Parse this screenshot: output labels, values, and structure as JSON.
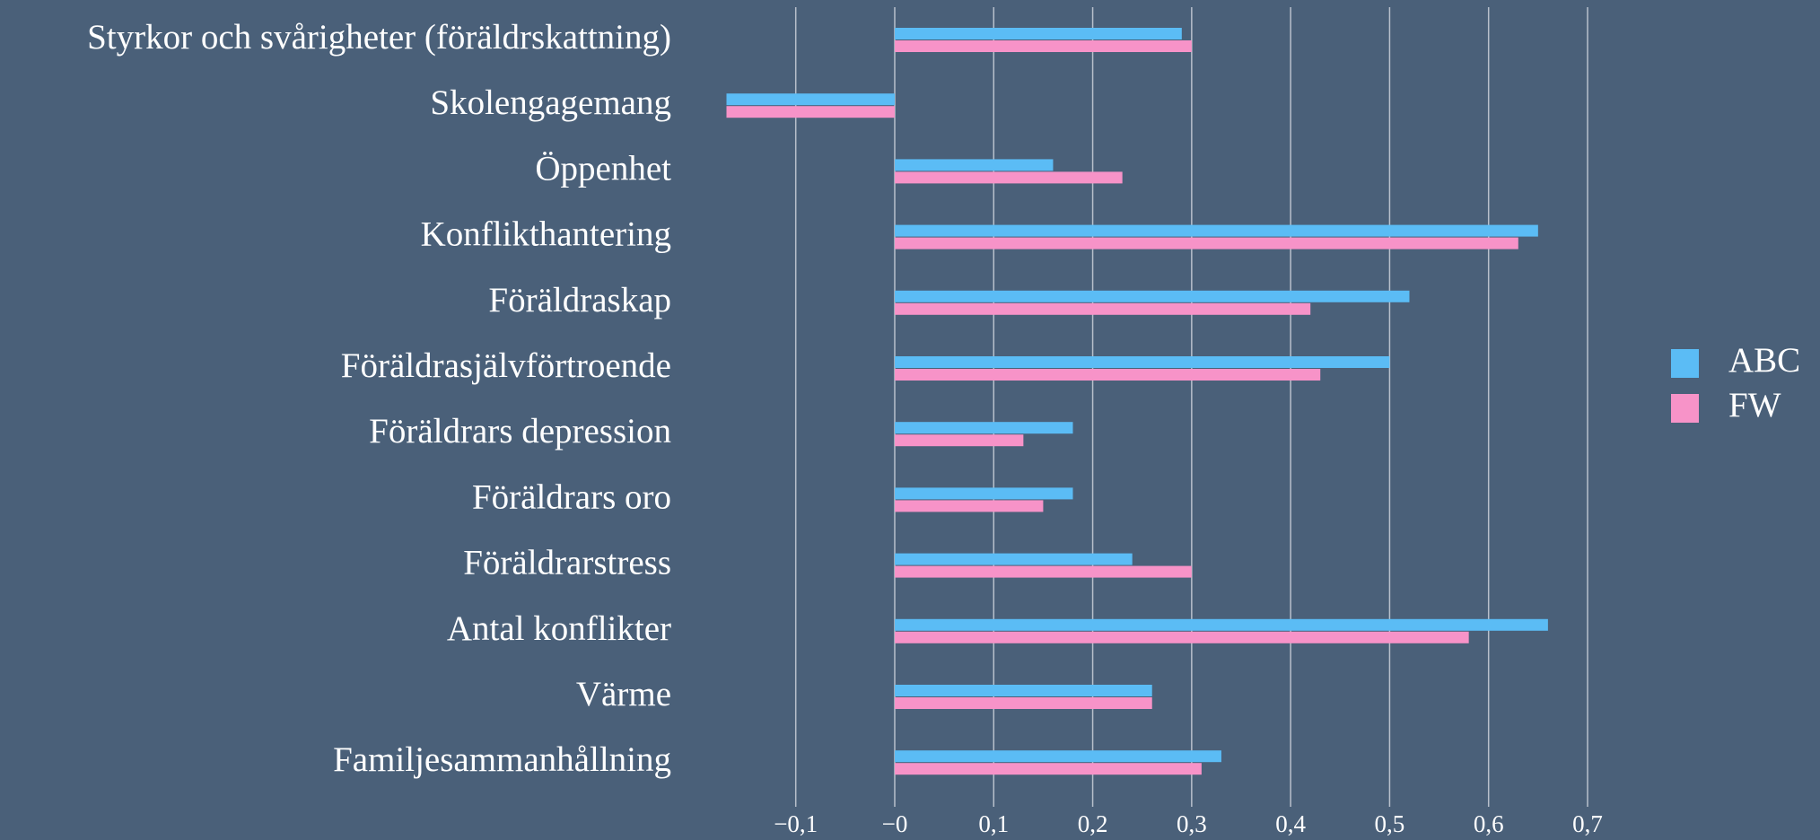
{
  "chart_data": {
    "type": "barh",
    "categories": [
      "Styrkor och svårigheter (föräldrskattning)",
      "Skolengagemang",
      "Öppenhet",
      "Konflikthantering",
      "Föräldraskap",
      "Föräldrasjälvförtroende",
      "Föräldrars depression",
      "Föräldrars oro",
      "Föräldrarstress",
      "Antal konflikter",
      "Värme",
      "Familjesammanhållning"
    ],
    "series": [
      {
        "name": "ABC",
        "color": "#5bbcf5",
        "values": [
          0.29,
          -0.17,
          0.16,
          0.65,
          0.52,
          0.5,
          0.18,
          0.18,
          0.24,
          0.66,
          0.26,
          0.33
        ]
      },
      {
        "name": "FW",
        "color": "#f793c8",
        "values": [
          0.3,
          -0.17,
          0.23,
          0.63,
          0.42,
          0.43,
          0.13,
          0.15,
          0.3,
          0.58,
          0.26,
          0.31
        ]
      }
    ],
    "xlim": [
      -0.17,
      0.7
    ],
    "xticks": [
      {
        "value": -0.1,
        "label": "−0,1"
      },
      {
        "value": 0,
        "label": "−0"
      },
      {
        "value": 0.1,
        "label": "0,1"
      },
      {
        "value": 0.2,
        "label": "0,2"
      },
      {
        "value": 0.3,
        "label": "0,3"
      },
      {
        "value": 0.4,
        "label": "0,4"
      },
      {
        "value": 0.5,
        "label": "0,5"
      },
      {
        "value": 0.6,
        "label": "0,6"
      },
      {
        "value": 0.7,
        "label": "0,7"
      }
    ],
    "grid": true,
    "legend": "right"
  }
}
